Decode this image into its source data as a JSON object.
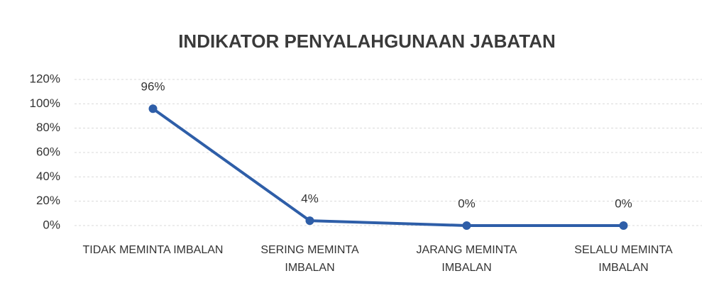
{
  "chart_data": {
    "type": "line",
    "title": "INDIKATOR PENYALAHGUNAAN JABATAN",
    "categories": [
      "TIDAK MEMINTA IMBALAN",
      "SERING MEMINTA IMBALAN",
      "JARANG MEMINTA IMBALAN",
      "SELALU MEMINTA IMBALAN"
    ],
    "values": [
      96,
      4,
      0,
      0
    ],
    "value_labels": [
      "96%",
      "4%",
      "0%",
      "0%"
    ],
    "color": "#2e5ea8",
    "ylim": [
      0,
      120
    ],
    "yticks": [
      {
        "value": 0,
        "label": "0%"
      },
      {
        "value": 20,
        "label": "20%"
      },
      {
        "value": 40,
        "label": "40%"
      },
      {
        "value": 60,
        "label": "60%"
      },
      {
        "value": 80,
        "label": "80%"
      },
      {
        "value": 100,
        "label": "100%"
      },
      {
        "value": 120,
        "label": "120%"
      }
    ],
    "grid": true
  }
}
